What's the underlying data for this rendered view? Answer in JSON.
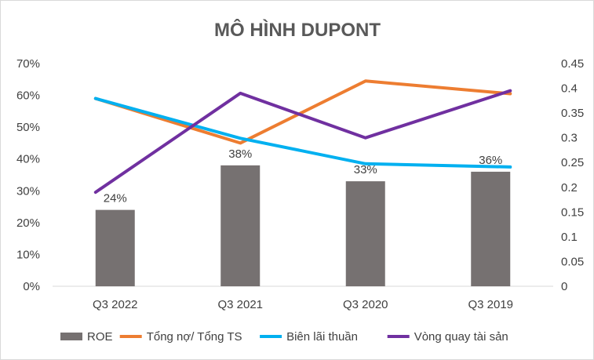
{
  "chart_data": {
    "type": "bar",
    "title": "MÔ HÌNH DUPONT",
    "categories": [
      "Q3 2022",
      "Q3 2021",
      "Q3 2020",
      "Q3 2019"
    ],
    "y_left": {
      "min": 0,
      "max": 0.7,
      "step": 0.1,
      "ticks": [
        "0%",
        "10%",
        "20%",
        "30%",
        "40%",
        "50%",
        "60%",
        "70%"
      ]
    },
    "y_right": {
      "min": 0,
      "max": 0.45,
      "step": 0.05,
      "ticks": [
        "0",
        "0.05",
        "0.1",
        "0.15",
        "0.2",
        "0.25",
        "0.3",
        "0.35",
        "0.4",
        "0.45"
      ]
    },
    "grid": false,
    "legend_position": "bottom",
    "series": [
      {
        "name": "ROE",
        "type": "bar",
        "axis": "left",
        "color": "#767171",
        "values": [
          0.24,
          0.38,
          0.33,
          0.36
        ],
        "labels": [
          "24%",
          "38%",
          "33%",
          "36%"
        ]
      },
      {
        "name": "Tổng nợ/ Tổng TS",
        "type": "line",
        "axis": "left",
        "color": "#ED7D31",
        "values": [
          0.59,
          0.45,
          0.645,
          0.605
        ]
      },
      {
        "name": "Biên lãi thuần",
        "type": "line",
        "axis": "left",
        "color": "#00B0F0",
        "values": [
          0.59,
          0.465,
          0.385,
          0.375
        ]
      },
      {
        "name": "Vòng quay tài sản",
        "type": "line",
        "axis": "right",
        "color": "#7030A0",
        "values": [
          0.19,
          0.39,
          0.3,
          0.395
        ]
      }
    ]
  }
}
